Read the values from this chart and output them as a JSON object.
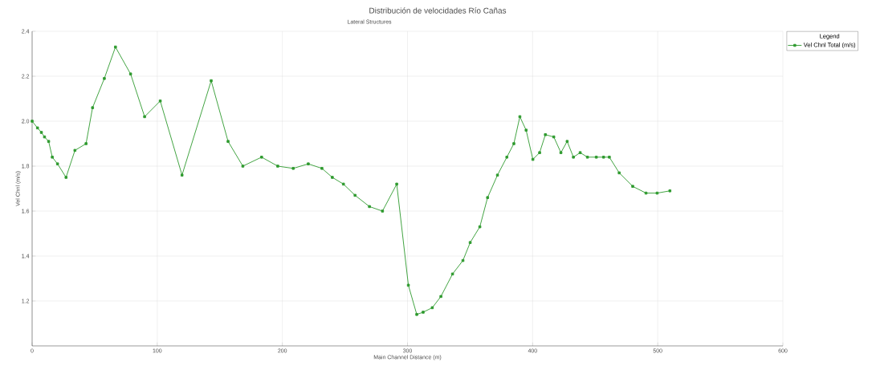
{
  "chart_data": {
    "type": "line",
    "title": "Distribución de velocidades Río Cañas",
    "subtitle": "Lateral Structures",
    "xlabel": "Main Channel Distance (m)",
    "ylabel": "Vel Chnl (m/s)",
    "legend_title": "Legend",
    "x": [
      0,
      4.3,
      7.4,
      9.9,
      13.2,
      16.1,
      20.3,
      27.1,
      34.2,
      43.1,
      48.3,
      57.7,
      66.6,
      78.7,
      89.9,
      102.4,
      119.8,
      143.1,
      156.6,
      168.4,
      183.4,
      196.3,
      208.7,
      220.7,
      231.6,
      239.9,
      248.8,
      258.1,
      269.6,
      280,
      291.4,
      300.7,
      307.4,
      312.5,
      319.8,
      326.7,
      336,
      344.3,
      350.1,
      357.8,
      364,
      371.9,
      379.4,
      385,
      389.8,
      394.8,
      400.2,
      405.6,
      410.2,
      416.9,
      422.6,
      427.6,
      432.6,
      438,
      443.8,
      450.9,
      456.7,
      461.3,
      469.2,
      480,
      490.6,
      499.5,
      509.7
    ],
    "series": [
      {
        "name": "Vel Chnl Total (m/s)",
        "color": "#2e9a2e",
        "values": [
          2.0,
          1.97,
          1.95,
          1.93,
          1.91,
          1.84,
          1.81,
          1.75,
          1.87,
          1.9,
          2.06,
          2.19,
          2.33,
          2.21,
          2.02,
          2.09,
          1.76,
          2.18,
          1.91,
          1.8,
          1.84,
          1.8,
          1.79,
          1.81,
          1.79,
          1.75,
          1.72,
          1.67,
          1.62,
          1.6,
          1.72,
          1.27,
          1.14,
          1.15,
          1.17,
          1.22,
          1.32,
          1.38,
          1.46,
          1.53,
          1.66,
          1.76,
          1.84,
          1.9,
          2.02,
          1.96,
          1.83,
          1.86,
          1.94,
          1.93,
          1.86,
          1.91,
          1.84,
          1.86,
          1.84,
          1.84,
          1.84,
          1.84,
          1.77,
          1.71,
          1.68,
          1.68,
          1.69
        ]
      }
    ],
    "xlim": [
      0,
      600
    ],
    "xticks": [
      0,
      100,
      200,
      300,
      400,
      500,
      600
    ],
    "ylim": [
      1.0,
      2.4
    ],
    "yticks": [
      1.2,
      1.4,
      1.6,
      1.8,
      {
        "value": 2,
        "label": "2.0"
      },
      2.2,
      2.4
    ],
    "grid": true,
    "legend": "top right",
    "marker": "square",
    "line_style": "solid"
  }
}
